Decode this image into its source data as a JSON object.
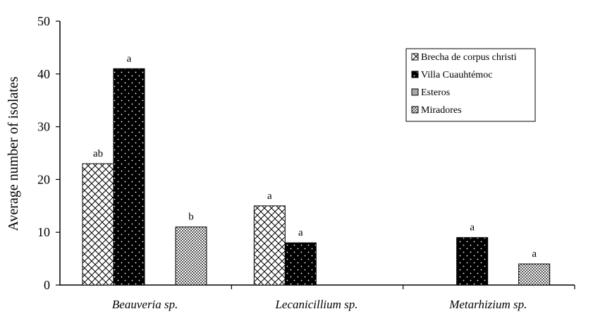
{
  "chart_data": {
    "type": "bar",
    "ylabel": "Average number of isolates",
    "xlabel": "",
    "ylim": [
      0,
      50
    ],
    "yticks": [
      0,
      10,
      20,
      30,
      40,
      50
    ],
    "grid": false,
    "legend_position": "top-right",
    "categories": [
      "Beauveria sp.",
      "Lecanicillium sp.",
      "Metarhizium sp."
    ],
    "series": [
      {
        "name": "Brecha de corpus christi",
        "pattern": "crosshatch",
        "values": [
          23,
          15,
          0
        ],
        "labels": [
          "ab",
          "a",
          ""
        ]
      },
      {
        "name": "Villa Cuauhtémoc",
        "pattern": "black-dotted",
        "values": [
          41,
          8,
          9
        ],
        "labels": [
          "a",
          "a",
          "a"
        ]
      },
      {
        "name": "Esteros",
        "pattern": "gray",
        "values": [
          0,
          0,
          0
        ],
        "labels": [
          "",
          "",
          ""
        ]
      },
      {
        "name": "Miradores",
        "pattern": "checker",
        "values": [
          11,
          0,
          4
        ],
        "labels": [
          "b",
          "",
          "a"
        ]
      }
    ]
  }
}
